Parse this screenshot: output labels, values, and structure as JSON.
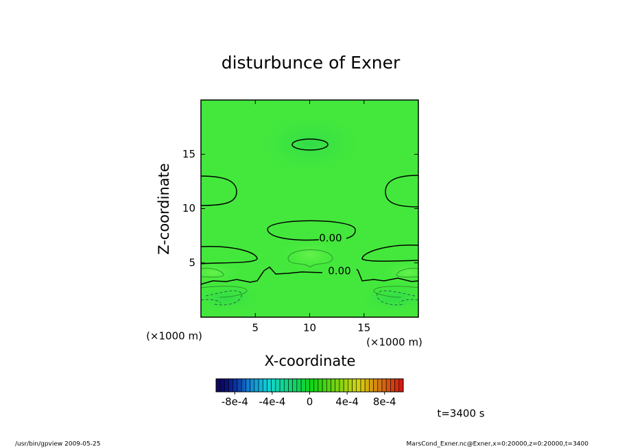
{
  "chart_data": {
    "type": "contour",
    "title": "disturbunce of Exner",
    "xlabel": "X-coordinate",
    "ylabel": "Z-coordinate",
    "x_unit": "(×1000 m)",
    "y_unit": "(×1000 m)",
    "xlim": [
      0,
      20
    ],
    "ylim": [
      0,
      20
    ],
    "xticks": [
      5,
      10,
      15
    ],
    "yticks": [
      5,
      10,
      15
    ],
    "contour_labels": [
      {
        "value": 0,
        "label": "0.00"
      },
      {
        "value": 0,
        "label": "0.00"
      }
    ],
    "colorbar": {
      "clim": [
        -0.001,
        0.001
      ],
      "ticks": [
        {
          "value": -0.0008,
          "label": "-8e-4"
        },
        {
          "value": -0.0004,
          "label": "-4e-4"
        },
        0,
        {
          "value": 0.0004,
          "label": "4e-4"
        },
        {
          "value": 0.0008,
          "label": "8e-4"
        }
      ]
    },
    "annotation": "t=3400 s"
  },
  "footer": {
    "left": "/usr/bin/gpview  2009-05-25",
    "right": "MarsCond_Exner.nc@Exner,x=0:20000,z=0:20000,t=3400"
  }
}
